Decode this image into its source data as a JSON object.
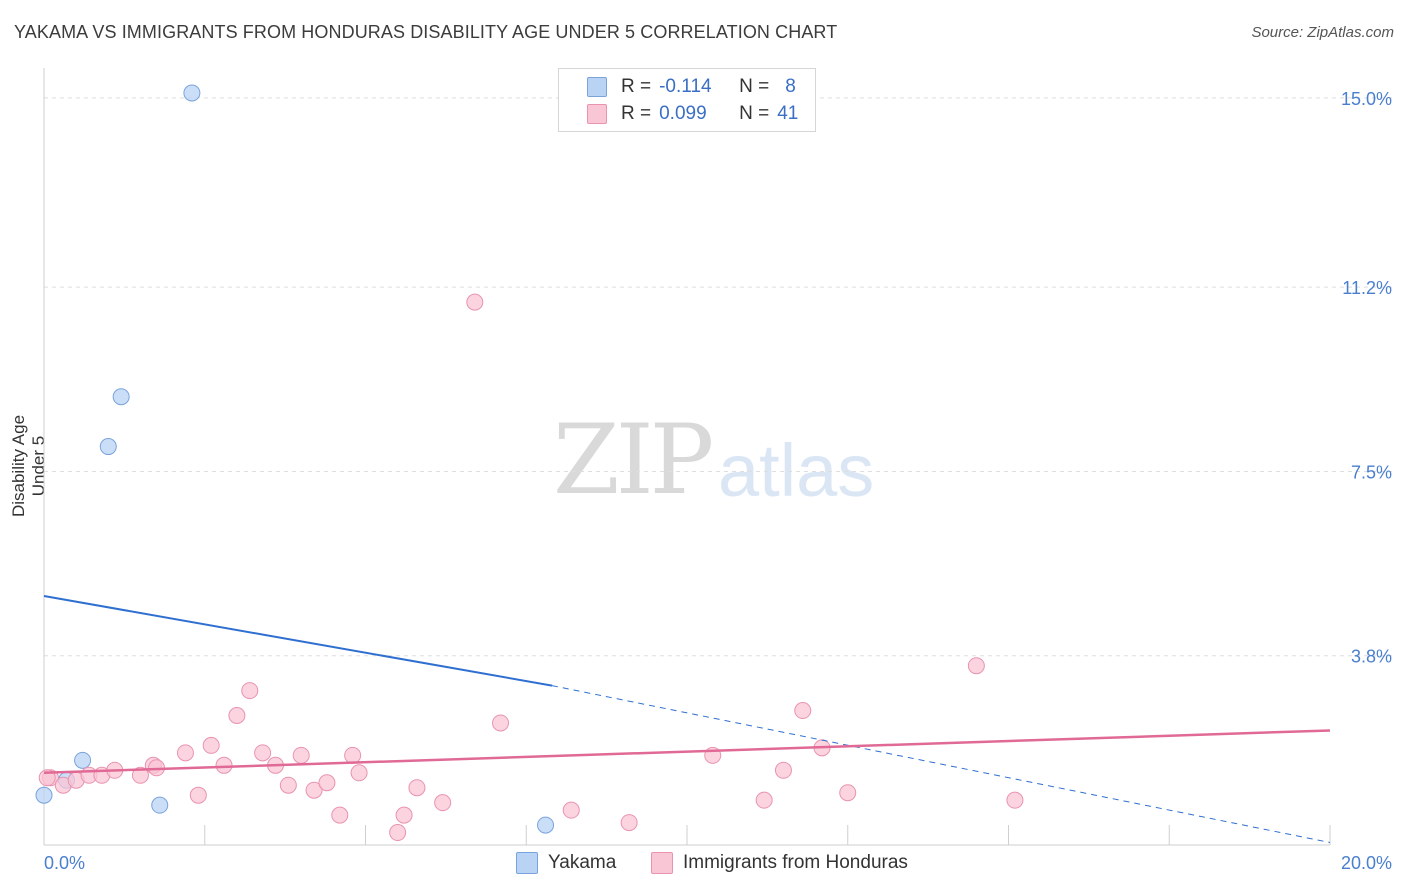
{
  "header": {
    "title": "YAKAMA VS IMMIGRANTS FROM HONDURAS DISABILITY AGE UNDER 5 CORRELATION CHART",
    "source": "Source: ZipAtlas.com"
  },
  "watermark": {
    "zip": "ZIP",
    "atlas": "atlas"
  },
  "legend_top": {
    "rows": [
      {
        "r_label": "R =",
        "r_value": "-0.114",
        "n_label": "N =",
        "n_value": "8",
        "color": "#b9d3f5"
      },
      {
        "r_label": "R =",
        "r_value": "0.099",
        "n_label": "N =",
        "n_value": "41",
        "color": "#f9c6d6"
      }
    ]
  },
  "chart_data": {
    "type": "scatter",
    "title": "YAKAMA VS IMMIGRANTS FROM HONDURAS DISABILITY AGE UNDER 5 CORRELATION CHART",
    "xlabel": "",
    "ylabel": "Disability Age Under 5",
    "xlim": [
      0,
      20
    ],
    "ylim": [
      0,
      15.4
    ],
    "x_tick_labels": [
      "0.0%",
      "20.0%"
    ],
    "y_ticks": [
      3.8,
      7.5,
      11.2,
      15.0
    ],
    "y_tick_labels": [
      "3.8%",
      "7.5%",
      "11.2%",
      "15.0%"
    ],
    "grid": true,
    "series": [
      {
        "name": "Yakama",
        "color": "#b9d3f5",
        "edge": "#7aa3dc",
        "points": [
          [
            0.0,
            1.0
          ],
          [
            0.35,
            1.3
          ],
          [
            0.6,
            1.7
          ],
          [
            1.0,
            8.0
          ],
          [
            1.2,
            9.0
          ],
          [
            1.8,
            0.8
          ],
          [
            2.3,
            15.1
          ],
          [
            7.8,
            0.4
          ]
        ],
        "trend": {
          "x0": 0,
          "y0": 5.0,
          "x1": 7.9,
          "y1": 3.2,
          "dash_to_x": 20,
          "dash_to_y": 0.05,
          "color": "#2f6fd0"
        }
      },
      {
        "name": "Immigrants from Honduras",
        "color": "#f9c6d6",
        "edge": "#e993b0",
        "points": [
          [
            0.1,
            1.35
          ],
          [
            0.3,
            1.2
          ],
          [
            0.5,
            1.3
          ],
          [
            0.7,
            1.4
          ],
          [
            0.9,
            1.4
          ],
          [
            1.1,
            1.5
          ],
          [
            1.5,
            1.4
          ],
          [
            1.7,
            1.6
          ],
          [
            1.75,
            1.55
          ],
          [
            2.2,
            1.85
          ],
          [
            2.4,
            1.0
          ],
          [
            2.6,
            2.0
          ],
          [
            2.8,
            1.6
          ],
          [
            3.0,
            2.6
          ],
          [
            3.2,
            3.1
          ],
          [
            3.4,
            1.85
          ],
          [
            3.6,
            1.6
          ],
          [
            3.8,
            1.2
          ],
          [
            4.0,
            1.8
          ],
          [
            4.2,
            1.1
          ],
          [
            4.4,
            1.25
          ],
          [
            4.6,
            0.6
          ],
          [
            4.8,
            1.8
          ],
          [
            4.9,
            1.45
          ],
          [
            5.5,
            0.25
          ],
          [
            5.6,
            0.6
          ],
          [
            5.8,
            1.15
          ],
          [
            6.2,
            0.85
          ],
          [
            6.7,
            10.9
          ],
          [
            7.1,
            2.45
          ],
          [
            8.2,
            0.7
          ],
          [
            9.1,
            0.45
          ],
          [
            10.4,
            1.8
          ],
          [
            11.2,
            0.9
          ],
          [
            11.5,
            1.5
          ],
          [
            11.8,
            2.7
          ],
          [
            12.1,
            1.95
          ],
          [
            12.5,
            1.05
          ],
          [
            14.5,
            3.6
          ],
          [
            15.1,
            0.9
          ],
          [
            0.05,
            1.35
          ]
        ],
        "trend": {
          "x0": 0,
          "y0": 1.45,
          "x1": 20,
          "y1": 2.3,
          "color": "#e06a95"
        }
      }
    ]
  },
  "bottom_legend": {
    "items": [
      {
        "label": "Yakama",
        "color": "#b9d3f5",
        "edge": "#7aa3dc"
      },
      {
        "label": "Immigrants from Honduras",
        "color": "#f9c6d6",
        "edge": "#e993b0"
      }
    ]
  }
}
